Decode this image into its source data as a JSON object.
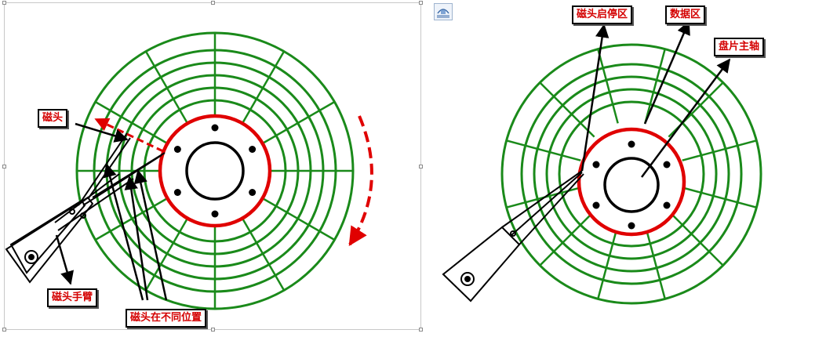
{
  "left_diagram": {
    "labels": {
      "head": "磁头",
      "head_arm": "磁头手臂",
      "head_positions": "磁头在不同位置"
    }
  },
  "right_diagram": {
    "labels": {
      "park_zone": "磁头启停区",
      "data_zone": "数据区",
      "spindle": "盘片主轴"
    }
  },
  "colors": {
    "tracks": "#1a8a1a",
    "hub_ring": "#e00000",
    "label_text": "#d40000",
    "rotation_arrow": "#e00000"
  }
}
